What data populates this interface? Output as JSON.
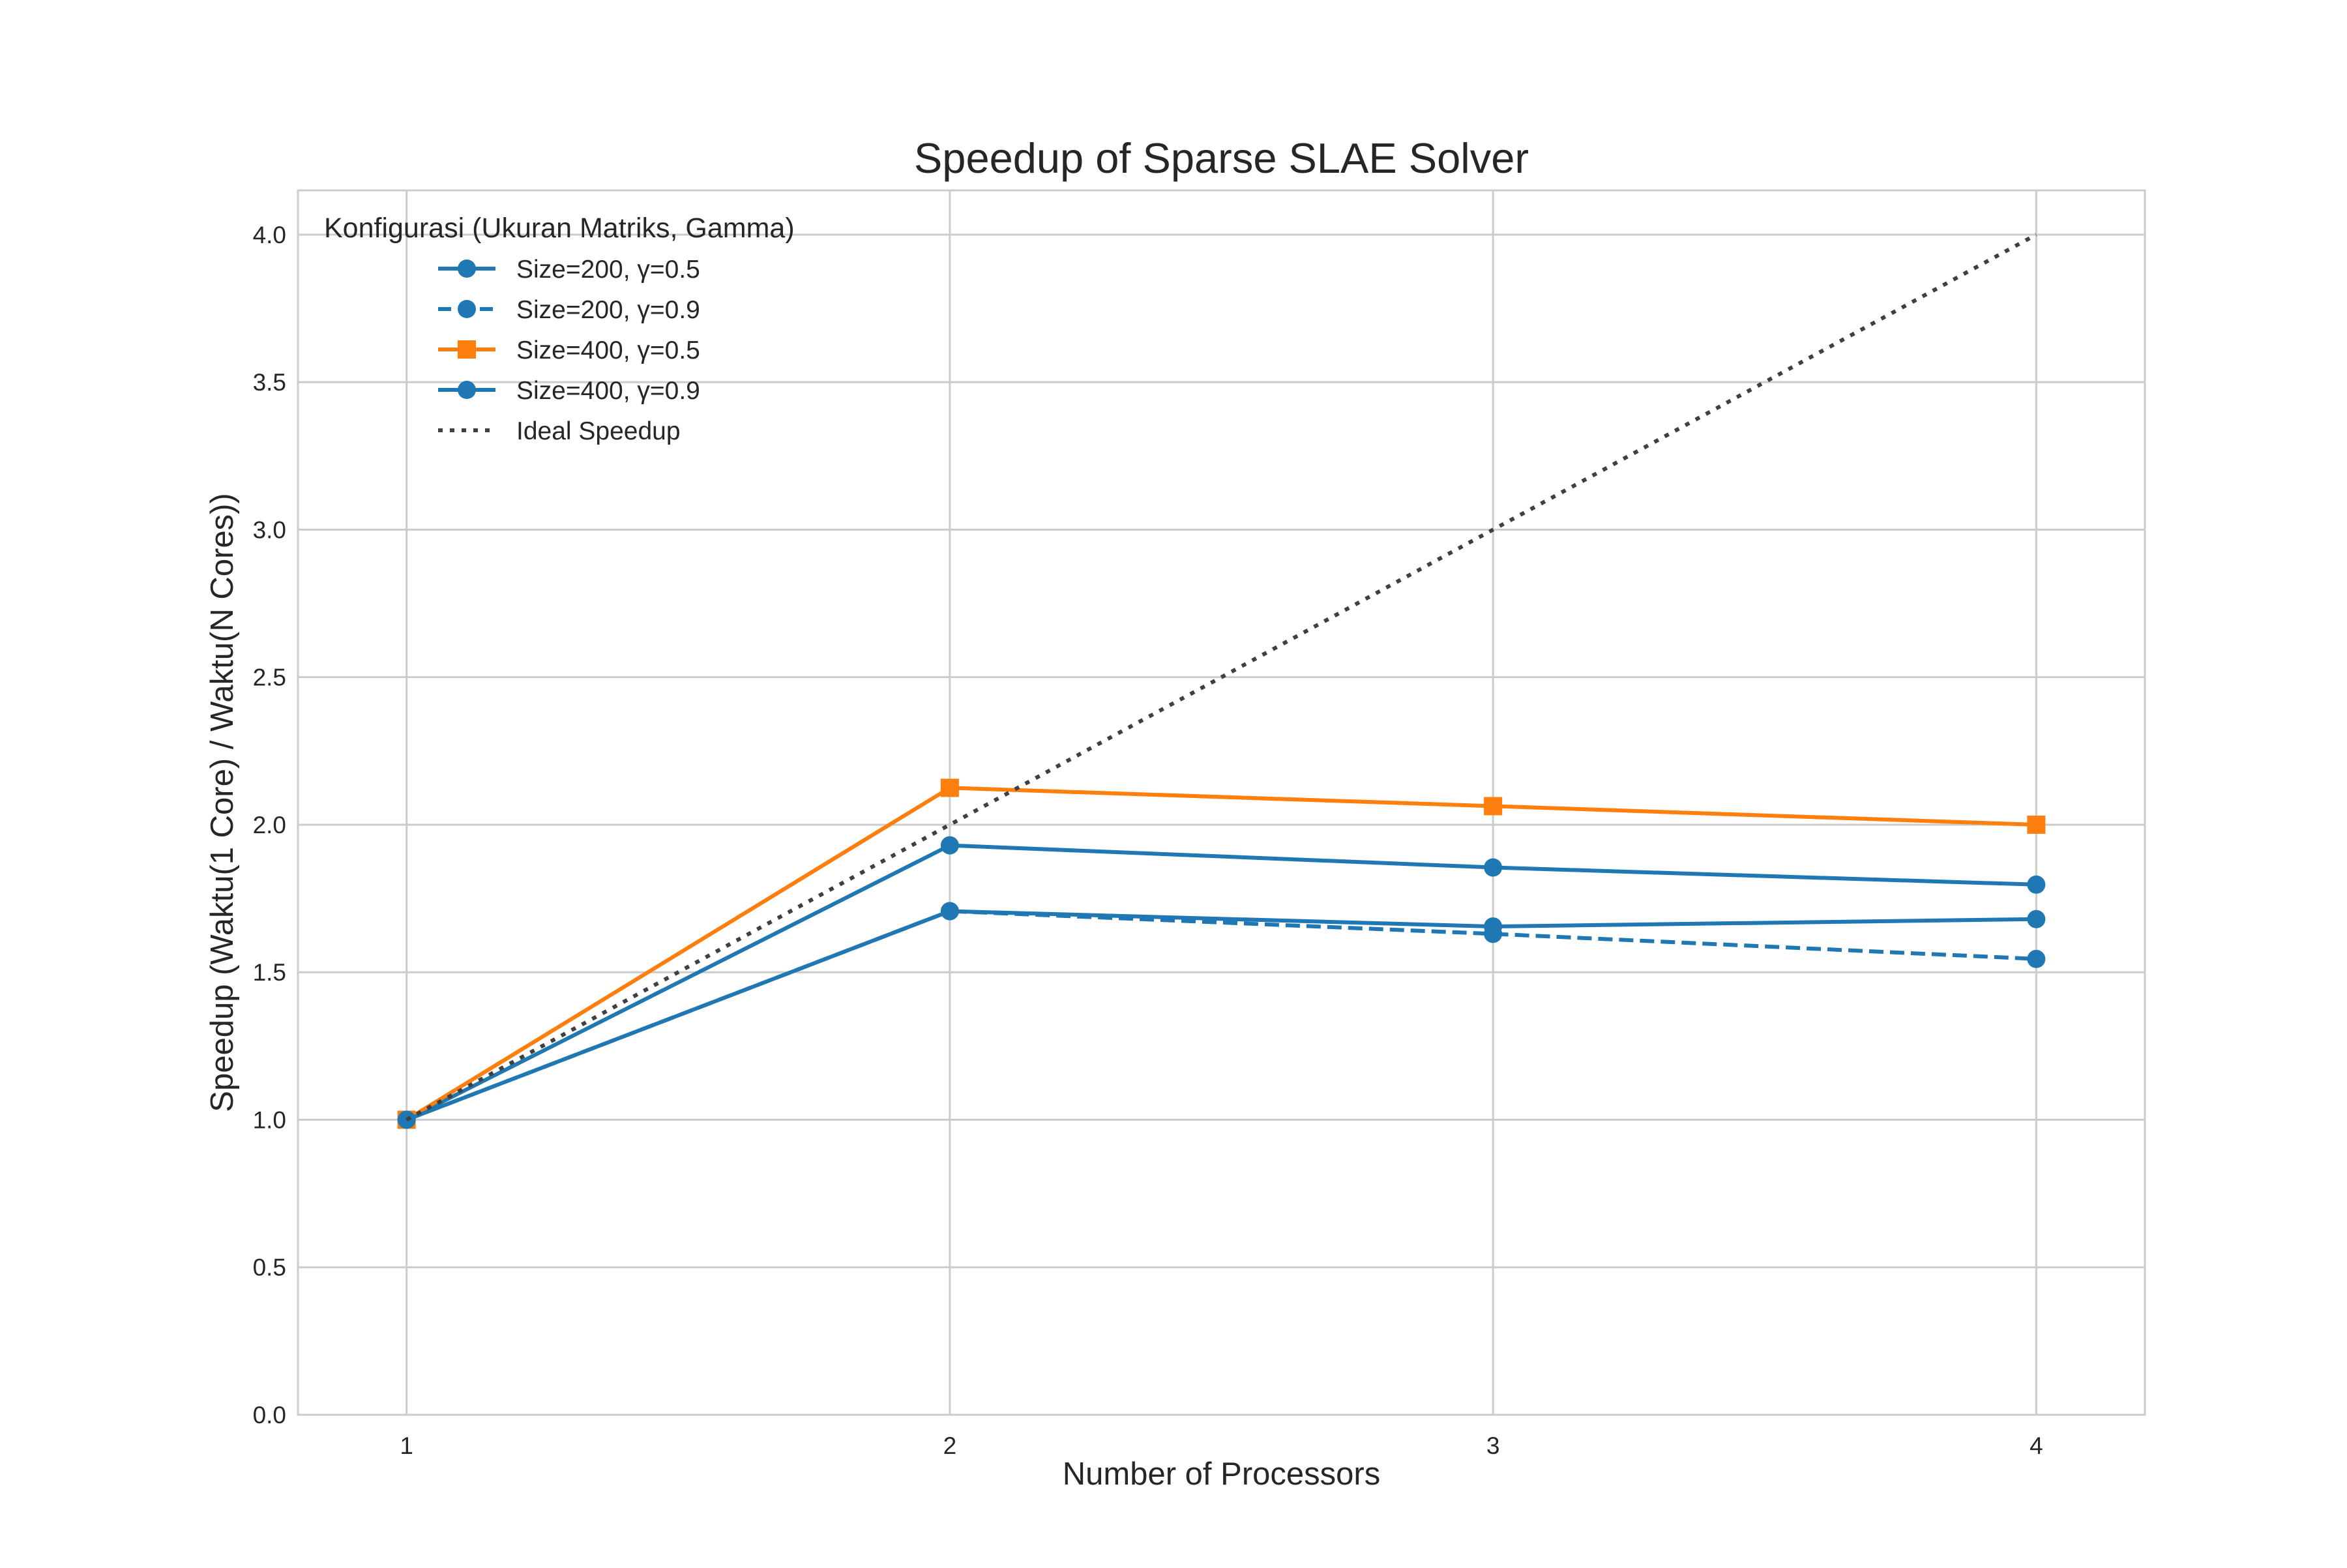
{
  "chart_data": {
    "type": "line",
    "title": "Speedup of Sparse SLAE Solver",
    "xlabel": "Number of Processors",
    "ylabel": "Speedup (Waktu(1 Core) / Waktu(N Cores))",
    "x": [
      1,
      2,
      3,
      4
    ],
    "xticks": [
      "1",
      "2",
      "3",
      "4"
    ],
    "yticks": [
      "0.0",
      "0.5",
      "1.0",
      "1.5",
      "2.0",
      "2.5",
      "3.0",
      "3.5",
      "4.0"
    ],
    "xlim": [
      0.8,
      4.2
    ],
    "ylim": [
      0,
      4.15
    ],
    "grid": true,
    "legend": {
      "title": "Konfigurasi (Ukuran Matriks, Gamma)",
      "placement": "top-left"
    },
    "series": [
      {
        "name": "Size=200, γ=0.5",
        "values": [
          1.0,
          1.93,
          1.855,
          1.797
        ],
        "color": "#1f77b4",
        "line": "solid",
        "marker": "circle"
      },
      {
        "name": "Size=200, γ=0.9",
        "values": [
          1.0,
          1.707,
          1.63,
          1.545
        ],
        "color": "#1f77b4",
        "line": "dashed",
        "marker": "circle"
      },
      {
        "name": "Size=400, γ=0.5",
        "values": [
          1.0,
          2.125,
          2.063,
          2.0
        ],
        "color": "#ff7f0e",
        "line": "solid",
        "marker": "square"
      },
      {
        "name": "Size=400, γ=0.9",
        "values": [
          1.0,
          1.707,
          1.655,
          1.68
        ],
        "color": "#1f77b4",
        "line": "solid",
        "marker": "circle"
      },
      {
        "name": "Ideal Speedup",
        "values": [
          1,
          2,
          3,
          4
        ],
        "color": "#404040",
        "line": "dotted",
        "marker": "none"
      }
    ]
  }
}
